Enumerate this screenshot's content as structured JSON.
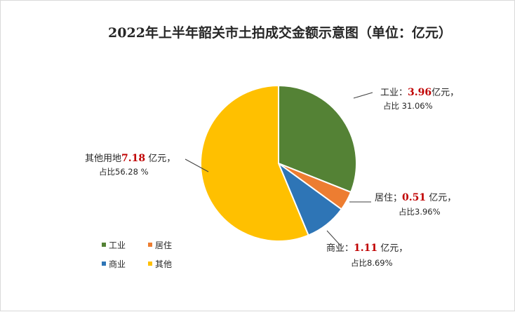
{
  "chart_data": {
    "type": "pie",
    "title": "2022年上半年韶关市土拍成交金额示意图（单位：亿元）",
    "unit": "亿元",
    "slices": [
      {
        "name": "工业",
        "value": 3.96,
        "percent": 31.06,
        "color": "#548235",
        "label_prefix": "工业：",
        "label_value": "3.96",
        "label_unit": "亿元，",
        "label_line2": "占比 31.06%"
      },
      {
        "name": "居住",
        "value": 0.51,
        "percent": 3.96,
        "color": "#ED7D31",
        "label_prefix": "居住；",
        "label_value": "0.51",
        "label_unit": " 亿元，",
        "label_line2": "占比3.96%"
      },
      {
        "name": "商业",
        "value": 1.11,
        "percent": 8.69,
        "color": "#2E75B6",
        "label_prefix": "商业：",
        "label_value": "1.11",
        "label_unit": " 亿元，",
        "label_line2": "占比8.69%"
      },
      {
        "name": "其他",
        "value": 7.18,
        "percent": 56.28,
        "color": "#FFC000",
        "label_prefix": "其他用地",
        "label_value": "7.18",
        "label_unit": " 亿元，",
        "label_line2": "占比56.28 %"
      }
    ],
    "value_color": "#C00000",
    "legend_position": "bottom-left",
    "legend": [
      "工业",
      "居住",
      "商业",
      "其他"
    ]
  }
}
